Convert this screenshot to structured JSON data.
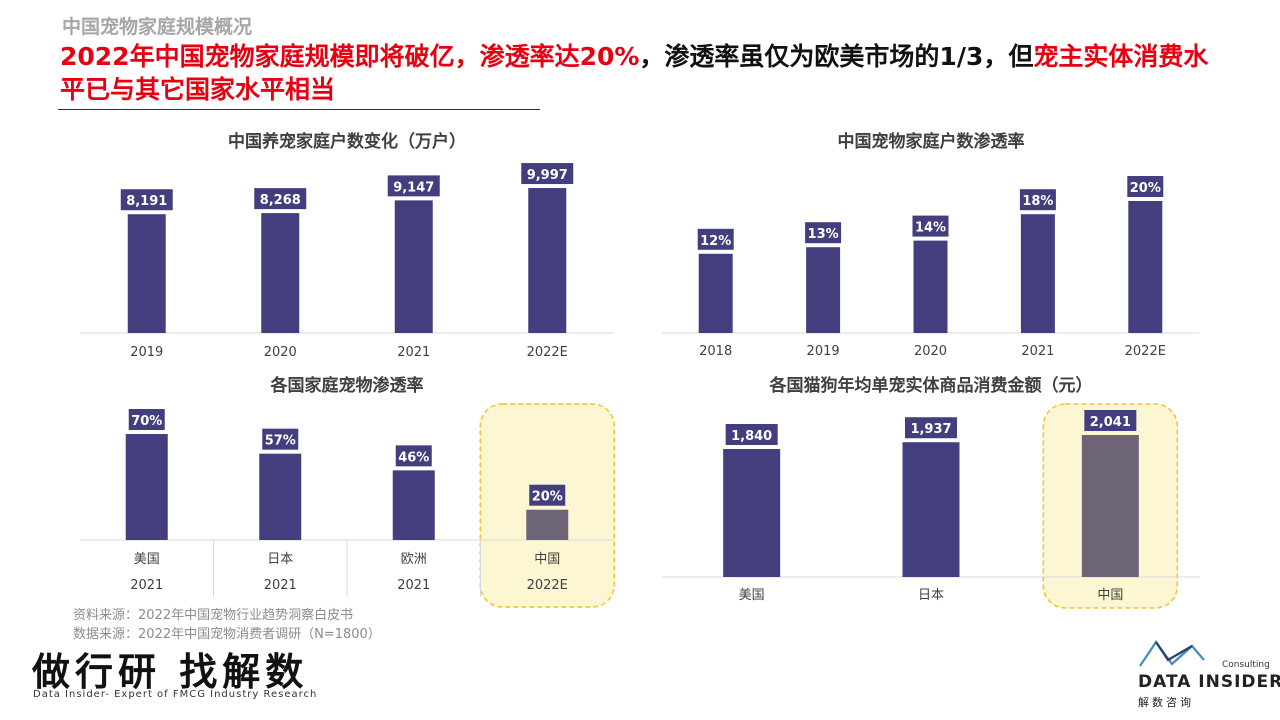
{
  "page": {
    "section_title": "中国宠物家庭规模概况",
    "headline_red_1": "2022年中国宠物家庭规模即将破亿，渗透率达20%",
    "headline_black": "，渗透率虽仅为欧美市场的1/3，但",
    "headline_red_2": "宠主实体消费水平已与其它国家水平相当",
    "source_1": "资料来源：2022年中国宠物行业趋势洞察白皮书",
    "source_2": "数据来源：2022年中国宠物消费者调研（N=1800）",
    "brand_slogan": "做行研 找解数",
    "brand_tagline": "Data Insider- Expert of FMCG Industry Research",
    "logo_consulting": "Consulting",
    "logo_name": "DATA INSIDER",
    "logo_cn": "解数咨询"
  },
  "colors": {
    "bar": "#433f7e",
    "bar_highlight": "#6e6478",
    "highlight_bg": "#fcf6d2",
    "highlight_border": "#f2c230",
    "title_red": "#e60012"
  },
  "chart_data": [
    {
      "id": "households",
      "type": "bar",
      "title": "中国养宠家庭户数变化（万户）",
      "categories": [
        "2019",
        "2020",
        "2021",
        "2022E"
      ],
      "values": [
        8191,
        8268,
        9147,
        9997
      ],
      "labels": [
        "8,191",
        "8,268",
        "9,147",
        "9,997"
      ],
      "ylim": [
        0,
        10000
      ]
    },
    {
      "id": "penetration_cn",
      "type": "bar",
      "title": "中国宠物家庭户数渗透率",
      "categories": [
        "2018",
        "2019",
        "2020",
        "2021",
        "2022E"
      ],
      "values": [
        12,
        13,
        14,
        18,
        20
      ],
      "labels": [
        "12%",
        "13%",
        "14%",
        "18%",
        "20%"
      ],
      "ylim": [
        0,
        20
      ]
    },
    {
      "id": "penetration_countries",
      "type": "bar",
      "title": "各国家庭宠物渗透率",
      "categories": [
        "美国",
        "日本",
        "欧洲",
        "中国"
      ],
      "years": [
        "2021",
        "2021",
        "2021",
        "2022E"
      ],
      "values": [
        70,
        57,
        46,
        20
      ],
      "labels": [
        "70%",
        "57%",
        "46%",
        "20%"
      ],
      "highlight": "中国",
      "ylim": [
        0,
        70
      ]
    },
    {
      "id": "spend",
      "type": "bar",
      "title": "各国猫狗年均单宠实体商品消费金额（元）",
      "categories": [
        "美国",
        "日本",
        "中国"
      ],
      "values": [
        1840,
        1937,
        2041
      ],
      "labels": [
        "1,840",
        "1,937",
        "2,041"
      ],
      "highlight": "中国",
      "ylim": [
        0,
        2041
      ]
    }
  ]
}
